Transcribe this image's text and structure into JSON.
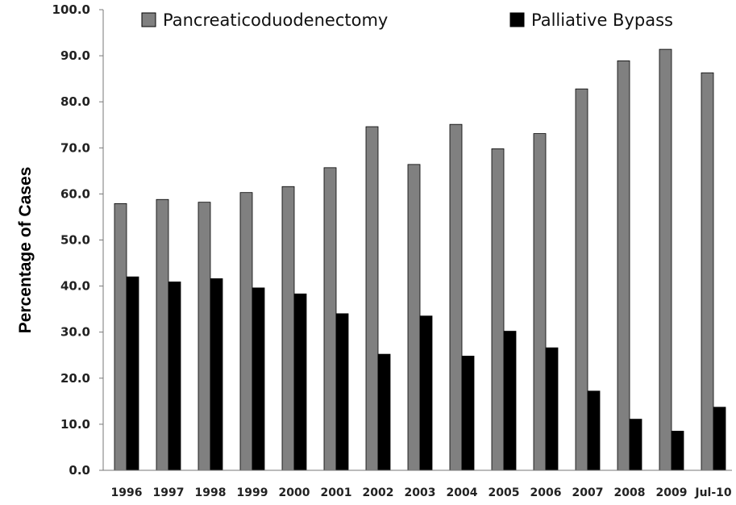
{
  "chart_data": {
    "type": "bar",
    "categories": [
      "1996",
      "1997",
      "1998",
      "1999",
      "2000",
      "2001",
      "2002",
      "2003",
      "2004",
      "2005",
      "2006",
      "2007",
      "2008",
      "2009",
      "Jul-10"
    ],
    "series": [
      {
        "name": "Pancreaticoduodenectomy",
        "color": "#808080",
        "values": [
          57.9,
          58.8,
          58.2,
          60.3,
          61.6,
          65.7,
          74.6,
          66.4,
          75.1,
          69.8,
          73.1,
          82.8,
          88.9,
          91.4,
          86.3
        ]
      },
      {
        "name": "Palliative Bypass",
        "color": "#000000",
        "values": [
          42.0,
          40.9,
          41.6,
          39.6,
          38.3,
          34.0,
          25.2,
          33.5,
          24.8,
          30.2,
          26.6,
          17.2,
          11.1,
          8.5,
          13.7
        ]
      }
    ],
    "title": "",
    "xlabel": "",
    "ylabel": "Percentage of Cases",
    "ylim": [
      0,
      100
    ],
    "yticks": [
      "0.0",
      "10.0",
      "20.0",
      "30.0",
      "40.0",
      "50.0",
      "60.0",
      "70.0",
      "80.0",
      "90.0",
      "100.0"
    ],
    "grid": false,
    "legend_position": "top"
  }
}
